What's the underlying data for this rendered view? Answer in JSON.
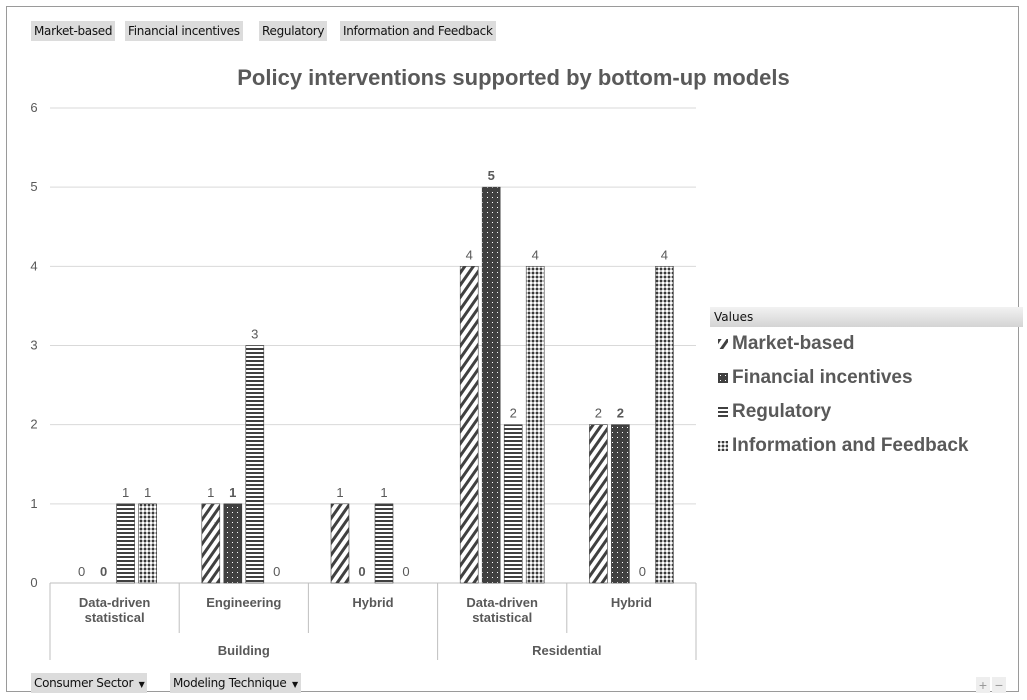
{
  "filters_top": [
    "Market-based",
    "Financial incentives",
    "Regulatory",
    "Information and Feedback"
  ],
  "filters_bottom": [
    "Consumer Sector",
    "Modeling Technique"
  ],
  "dropdown_icon": "▼",
  "zoom": {
    "plus": "+",
    "minus": "−"
  },
  "legend_header": "Values",
  "chart_data": {
    "type": "bar",
    "title": "Policy interventions supported by bottom-up models",
    "xlabel": "",
    "ylabel": "",
    "ylim": [
      0,
      6
    ],
    "yticks": [
      0,
      1,
      2,
      3,
      4,
      5,
      6
    ],
    "grid": true,
    "legend_position": "right",
    "groups": [
      {
        "label": "Building",
        "categories": [
          "Data-driven statistical",
          "Engineering",
          "Hybrid"
        ]
      },
      {
        "label": "Residential",
        "categories": [
          "Data-driven statistical",
          "Hybrid"
        ]
      }
    ],
    "categories": [
      [
        "Data-driven",
        "statistical"
      ],
      [
        "Engineering"
      ],
      [
        "Hybrid"
      ],
      [
        "Data-driven",
        "statistical"
      ],
      [
        "Hybrid"
      ]
    ],
    "series": [
      {
        "name": "Market-based",
        "pattern": "diagonal-hatch",
        "values": [
          0,
          1,
          1,
          4,
          2
        ]
      },
      {
        "name": "Financial incentives",
        "pattern": "dots",
        "values": [
          0,
          1,
          0,
          5,
          2
        ]
      },
      {
        "name": "Regulatory",
        "pattern": "horizontal-lines",
        "values": [
          1,
          3,
          1,
          2,
          0
        ]
      },
      {
        "name": "Information and Feedback",
        "pattern": "crosshatch",
        "values": [
          1,
          0,
          0,
          4,
          4
        ]
      }
    ],
    "colors": {
      "bar": "#404040",
      "text": "#595959",
      "grid": "#d9d9d9"
    }
  }
}
